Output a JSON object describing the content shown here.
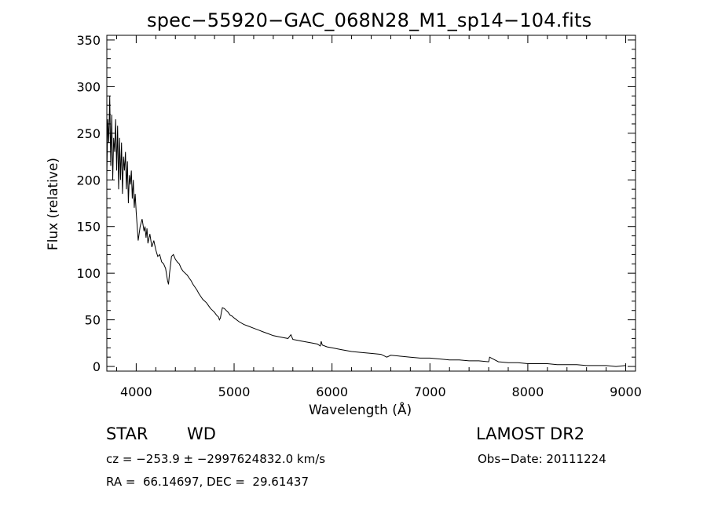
{
  "chart_data": {
    "type": "line",
    "title": "spec−55920−GAC_068N28_M1_sp14−104.fits",
    "xlabel": "Wavelength (Å)",
    "ylabel": "Flux (relative)",
    "xlim": [
      3700,
      9100
    ],
    "ylim": [
      -5,
      355
    ],
    "x_ticks": [
      4000,
      5000,
      6000,
      7000,
      8000,
      9000
    ],
    "y_ticks": [
      0,
      50,
      100,
      150,
      200,
      250,
      300,
      350
    ],
    "grid": false,
    "legend": "none",
    "series": [
      {
        "x": [
          3700,
          3710,
          3720,
          3730,
          3740,
          3750,
          3760,
          3770,
          3780,
          3790,
          3800,
          3810,
          3820,
          3830,
          3840,
          3850,
          3860,
          3870,
          3880,
          3890,
          3900,
          3910,
          3920,
          3930,
          3940,
          3950,
          3960,
          3970,
          3980,
          3990,
          4000,
          4020,
          4040,
          4060,
          4080,
          4090,
          4100,
          4110,
          4120,
          4140,
          4160,
          4180,
          4200,
          4220,
          4240,
          4260,
          4280,
          4300,
          4320,
          4330,
          4340,
          4350,
          4360,
          4380,
          4400,
          4420,
          4440,
          4460,
          4480,
          4500,
          4520,
          4540,
          4560,
          4580,
          4600,
          4620,
          4640,
          4660,
          4680,
          4700,
          4720,
          4740,
          4760,
          4780,
          4800,
          4820,
          4840,
          4850,
          4860,
          4870,
          4880,
          4900,
          4920,
          4940,
          4960,
          4980,
          5000,
          5050,
          5100,
          5150,
          5200,
          5250,
          5300,
          5350,
          5400,
          5450,
          5500,
          5550,
          5580,
          5600,
          5650,
          5700,
          5750,
          5800,
          5850,
          5880,
          5890,
          5900,
          5950,
          6000,
          6100,
          6200,
          6300,
          6400,
          6500,
          6560,
          6600,
          6700,
          6800,
          6900,
          7000,
          7100,
          7200,
          7300,
          7400,
          7500,
          7600,
          7610,
          7700,
          7800,
          7900,
          8000,
          8100,
          8200,
          8300,
          8400,
          8500,
          8600,
          8700,
          8800,
          8900,
          9000
        ],
        "y": [
          205,
          265,
          240,
          290,
          215,
          270,
          200,
          245,
          230,
          265,
          210,
          258,
          190,
          245,
          200,
          240,
          185,
          225,
          210,
          230,
          190,
          220,
          175,
          205,
          195,
          210,
          180,
          200,
          170,
          185,
          165,
          135,
          150,
          158,
          145,
          150,
          138,
          148,
          132,
          142,
          128,
          135,
          125,
          118,
          120,
          112,
          110,
          105,
          92,
          88,
          100,
          108,
          118,
          120,
          115,
          112,
          110,
          105,
          102,
          100,
          98,
          95,
          92,
          88,
          85,
          82,
          78,
          75,
          72,
          70,
          68,
          65,
          62,
          60,
          58,
          55,
          53,
          50,
          52,
          58,
          63,
          62,
          60,
          58,
          55,
          54,
          52,
          48,
          45,
          43,
          41,
          39,
          37,
          35,
          33,
          32,
          31,
          30,
          34,
          29,
          28,
          27,
          26,
          25,
          24,
          22,
          27,
          23,
          21,
          20,
          18,
          16,
          15,
          14,
          13,
          10,
          12,
          11,
          10,
          9,
          9,
          8,
          7,
          7,
          6,
          6,
          5,
          10,
          5,
          4,
          4,
          3,
          3,
          3,
          2,
          2,
          2,
          1,
          1,
          1,
          0,
          1
        ]
      }
    ]
  },
  "header": {
    "obj_class": "STAR",
    "obj_subclass": "WD",
    "survey": "LAMOST DR2"
  },
  "info": {
    "cz": "cz = −253.9 ± −2997624832.0 km/s",
    "obs_date": "Obs−Date: 20111224",
    "radec": "RA =  66.14697, DEC =  29.61437"
  }
}
